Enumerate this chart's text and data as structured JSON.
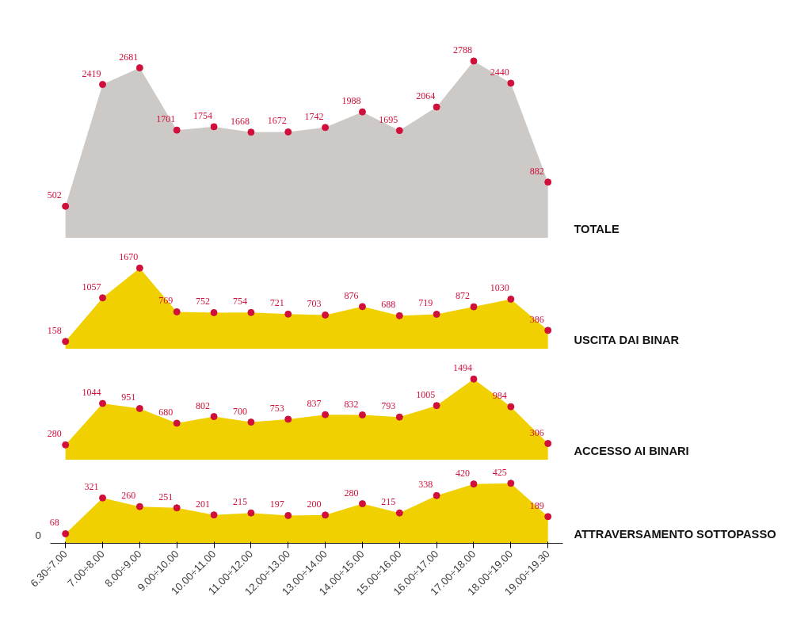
{
  "chart_data": [
    {
      "type": "area",
      "categories": [
        null,
        null,
        null,
        null,
        null,
        null,
        null,
        null,
        null,
        null,
        null,
        null,
        null,
        null
      ],
      "series": [
        {
          "name": "TOTALE",
          "color": "#cdc9c6",
          "values": [
            502,
            2419,
            2681,
            1701,
            1754,
            1668,
            1672,
            1742,
            1988,
            1695,
            2064,
            2788,
            2440,
            882
          ]
        }
      ],
      "data_labels": true,
      "marker": "circle",
      "tick_labels": false,
      "grid": false
    },
    {
      "type": "area",
      "categories": [
        null,
        null,
        null,
        null,
        null,
        null,
        null,
        null,
        null,
        null,
        null,
        null,
        null,
        null
      ],
      "series": [
        {
          "name": "USCITA DAI BINAR",
          "color": "#f0d000",
          "values": [
            158,
            1057,
            1670,
            769,
            752,
            754,
            721,
            703,
            876,
            688,
            719,
            872,
            1030,
            386
          ]
        }
      ],
      "data_labels": true,
      "marker": "circle",
      "tick_labels": false,
      "grid": false
    },
    {
      "type": "area",
      "categories": [
        null,
        null,
        null,
        null,
        null,
        null,
        null,
        null,
        null,
        null,
        null,
        null,
        null,
        null
      ],
      "series": [
        {
          "name": "ACCESSO AI BINARI",
          "color": "#f0d000",
          "values": [
            280,
            1044,
            951,
            680,
            802,
            700,
            753,
            837,
            832,
            793,
            1005,
            1494,
            984,
            306
          ]
        }
      ],
      "data_labels": true,
      "marker": "circle",
      "tick_labels": false,
      "grid": false
    },
    {
      "type": "area",
      "categories": [
        "6.30÷7.00",
        "7.00÷8.00",
        "8.00÷9.00",
        "9.00÷10.00",
        "10.00÷11.00",
        "11.00÷12.00",
        "12.00÷13.00",
        "13.00÷14.00",
        "14.00÷15.00",
        "15.00÷16.00",
        "16.00÷17.00",
        "17.00÷18.00",
        "18.00÷19.00",
        "19.00÷19.30"
      ],
      "series": [
        {
          "name": "ATTRAVERSAMENTO SOTTOPASSO",
          "color": "#f0d000",
          "values": [
            68,
            321,
            260,
            251,
            201,
            215,
            197,
            200,
            280,
            215,
            338,
            420,
            425,
            189
          ]
        }
      ],
      "data_labels": true,
      "marker": "circle",
      "tick_labels": "x",
      "annotations": [
        "0"
      ],
      "grid": false
    }
  ]
}
